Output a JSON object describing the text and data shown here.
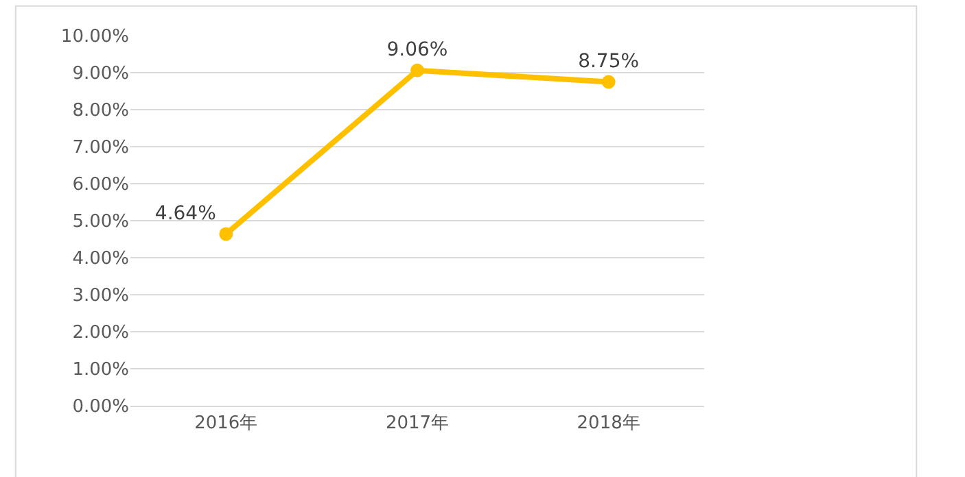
{
  "chart_data": {
    "type": "line",
    "categories": [
      "2016年",
      "2017年",
      "2018年"
    ],
    "series": [
      {
        "color": "#ffc000",
        "values": [
          4.64,
          9.06,
          8.75
        ],
        "value_labels": [
          "4.64%",
          "9.06%",
          "8.75%"
        ]
      }
    ],
    "ylim": [
      0,
      10
    ],
    "yticks": [
      {
        "value": 0,
        "label": "0.00%"
      },
      {
        "value": 1,
        "label": "1.00%"
      },
      {
        "value": 2,
        "label": "2.00%"
      },
      {
        "value": 3,
        "label": "3.00%"
      },
      {
        "value": 4,
        "label": "4.00%"
      },
      {
        "value": 5,
        "label": "5.00%"
      },
      {
        "value": 6,
        "label": "6.00%"
      },
      {
        "value": 7,
        "label": "7.00%"
      },
      {
        "value": 8,
        "label": "8.00%"
      },
      {
        "value": 9,
        "label": "9.00%"
      },
      {
        "value": 10,
        "label": "10.00%"
      }
    ],
    "grid": "y",
    "marker": "circle",
    "line_style": "solid"
  }
}
